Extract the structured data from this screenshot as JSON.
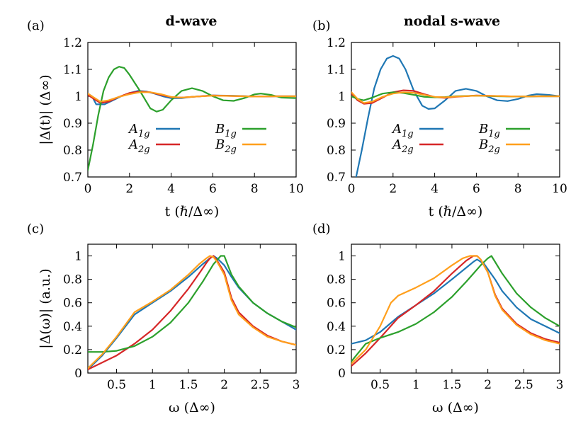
{
  "column_titles": {
    "left": "d-wave",
    "right": "nodal s-wave"
  },
  "chart_data": [
    {
      "type": "line",
      "panel_label": "(a)",
      "xlabel": "t (ℏ/Δ∞)",
      "ylabel": "|Δ(t)| (Δ∞)",
      "xlim": [
        0,
        10
      ],
      "ylim": [
        0.7,
        1.2
      ],
      "xticks": [
        "0",
        "2",
        "4",
        "6",
        "8",
        "10"
      ],
      "yticks": [
        "0.7",
        "0.8",
        "0.9",
        "1",
        "1.1",
        "1.2"
      ],
      "legend": "inside-lower-center",
      "series": [
        {
          "name": "A1g",
          "color": "#1f77b4",
          "x": [
            0,
            0.2,
            0.4,
            0.8,
            1.2,
            1.6,
            2.0,
            2.4,
            2.8,
            3.2,
            3.6,
            4.0,
            4.5,
            5,
            6,
            7,
            8,
            9,
            10
          ],
          "y": [
            1.01,
            1.0,
            0.97,
            0.97,
            0.985,
            1.0,
            1.012,
            1.02,
            1.018,
            1.01,
            1.0,
            0.993,
            0.993,
            0.998,
            1.003,
            1.002,
            0.999,
            1.0,
            1.0
          ]
        },
        {
          "name": "A2g",
          "color": "#d62728",
          "x": [
            0,
            0.3,
            0.6,
            1.0,
            1.5,
            2.0,
            2.5,
            3.0,
            3.5,
            4.0,
            4.5,
            5,
            6,
            7,
            8,
            9,
            10
          ],
          "y": [
            1.005,
            0.99,
            0.975,
            0.98,
            0.998,
            1.012,
            1.018,
            1.015,
            1.005,
            0.997,
            0.995,
            0.998,
            1.003,
            1.001,
            0.999,
            1.0,
            1.0
          ]
        },
        {
          "name": "B1g",
          "color": "#2ca02c",
          "x": [
            0,
            0.25,
            0.5,
            0.75,
            1.0,
            1.25,
            1.5,
            1.75,
            2.0,
            2.5,
            3.0,
            3.3,
            3.6,
            4.0,
            4.5,
            5.0,
            5.5,
            6.0,
            6.5,
            7.0,
            7.5,
            8.0,
            8.3,
            8.8,
            9.3,
            10
          ],
          "y": [
            0.725,
            0.82,
            0.93,
            1.02,
            1.07,
            1.1,
            1.11,
            1.105,
            1.08,
            1.02,
            0.955,
            0.943,
            0.95,
            0.985,
            1.02,
            1.03,
            1.02,
            1.0,
            0.985,
            0.983,
            0.993,
            1.007,
            1.01,
            1.005,
            0.995,
            0.993
          ]
        },
        {
          "name": "B2g",
          "color": "#ff9f1c",
          "x": [
            0,
            0.3,
            0.6,
            1.0,
            1.5,
            2.0,
            2.5,
            3.0,
            3.5,
            4.0,
            4.5,
            5,
            6,
            7,
            8,
            9,
            10
          ],
          "y": [
            1.01,
            0.995,
            0.98,
            0.985,
            0.998,
            1.008,
            1.015,
            1.015,
            1.008,
            0.998,
            0.995,
            0.998,
            1.002,
            1.001,
            0.999,
            1.0,
            1.0
          ]
        }
      ]
    },
    {
      "type": "line",
      "panel_label": "(b)",
      "xlabel": "t (ℏ/Δ∞)",
      "ylabel": "",
      "xlim": [
        0,
        10
      ],
      "ylim": [
        0.7,
        1.2
      ],
      "xticks": [
        "0",
        "2",
        "4",
        "6",
        "8",
        "10"
      ],
      "yticks": [
        "0.7",
        "0.8",
        "0.9",
        "1",
        "1.1",
        "1.2"
      ],
      "legend": "inside-lower-center",
      "series": [
        {
          "name": "A1g",
          "color": "#1f77b4",
          "x": [
            0.2,
            0.5,
            0.8,
            1.1,
            1.4,
            1.7,
            2.0,
            2.3,
            2.6,
            3.0,
            3.4,
            3.7,
            4.0,
            4.5,
            5.0,
            5.5,
            6.0,
            6.5,
            7.0,
            7.5,
            8.0,
            8.5,
            8.9,
            9.5,
            10
          ],
          "y": [
            0.69,
            0.8,
            0.92,
            1.03,
            1.1,
            1.14,
            1.15,
            1.14,
            1.1,
            1.02,
            0.965,
            0.953,
            0.955,
            0.985,
            1.02,
            1.028,
            1.02,
            1.0,
            0.985,
            0.982,
            0.99,
            1.003,
            1.008,
            1.005,
            1.0
          ]
        },
        {
          "name": "A2g",
          "color": "#d62728",
          "x": [
            0,
            0.3,
            0.6,
            1.0,
            1.5,
            2.0,
            2.5,
            3.0,
            3.5,
            4.0,
            4.5,
            5,
            6,
            7,
            8,
            9,
            10
          ],
          "y": [
            1.01,
            0.985,
            0.972,
            0.975,
            0.995,
            1.015,
            1.022,
            1.02,
            1.008,
            0.997,
            0.994,
            0.998,
            1.003,
            1.001,
            0.999,
            1.0,
            1.0
          ]
        },
        {
          "name": "B1g",
          "color": "#2ca02c",
          "x": [
            0,
            0.3,
            0.6,
            1.0,
            1.5,
            2.0,
            2.5,
            3.0,
            3.5,
            4.0,
            4.5,
            5,
            6,
            7,
            8,
            9,
            10
          ],
          "y": [
            1.0,
            0.99,
            0.985,
            0.995,
            1.01,
            1.015,
            1.012,
            1.005,
            0.998,
            0.996,
            0.997,
            1.0,
            1.002,
            1.0,
            0.999,
            1.0,
            1.0
          ]
        },
        {
          "name": "B2g",
          "color": "#ff9f1c",
          "x": [
            0,
            0.3,
            0.6,
            1.0,
            1.5,
            2.0,
            2.5,
            3.0,
            3.5,
            4.0,
            4.5,
            5,
            6,
            7,
            8,
            9,
            10
          ],
          "y": [
            1.015,
            0.99,
            0.975,
            0.98,
            0.998,
            1.01,
            1.015,
            1.013,
            1.005,
            0.998,
            0.996,
            0.999,
            1.002,
            1.001,
            0.999,
            1.0,
            1.0
          ]
        }
      ]
    },
    {
      "type": "line",
      "panel_label": "(c)",
      "xlabel": "ω (Δ∞)",
      "ylabel": "|Δ(ω)| (a.u.)",
      "xlim": [
        0.1,
        3
      ],
      "ylim": [
        0,
        1.1
      ],
      "xticks": [
        "0.5",
        "1",
        "1.5",
        "2",
        "2.5",
        "3"
      ],
      "yticks": [
        "0",
        "0.2",
        "0.4",
        "0.6",
        "0.8",
        "1"
      ],
      "legend": "none",
      "series": [
        {
          "name": "A1g",
          "color": "#1f77b4",
          "x": [
            0.1,
            0.3,
            0.5,
            0.75,
            1.0,
            1.25,
            1.5,
            1.7,
            1.8,
            1.85,
            1.9,
            2.0,
            2.1,
            2.2,
            2.4,
            2.6,
            2.8,
            3.0
          ],
          "y": [
            0.03,
            0.15,
            0.3,
            0.5,
            0.6,
            0.7,
            0.82,
            0.93,
            0.98,
            1.0,
            0.98,
            0.92,
            0.82,
            0.73,
            0.6,
            0.51,
            0.44,
            0.37
          ]
        },
        {
          "name": "A2g",
          "color": "#d62728",
          "x": [
            0.1,
            0.3,
            0.5,
            0.75,
            1.0,
            1.25,
            1.5,
            1.65,
            1.75,
            1.8,
            1.85,
            1.9,
            2.0,
            2.1,
            2.2,
            2.4,
            2.6,
            2.8,
            3.0
          ],
          "y": [
            0.03,
            0.09,
            0.15,
            0.25,
            0.37,
            0.53,
            0.72,
            0.85,
            0.94,
            0.98,
            1.0,
            0.96,
            0.86,
            0.64,
            0.52,
            0.4,
            0.32,
            0.27,
            0.24
          ]
        },
        {
          "name": "B1g",
          "color": "#2ca02c",
          "x": [
            0.1,
            0.3,
            0.5,
            0.75,
            1.0,
            1.25,
            1.5,
            1.7,
            1.85,
            1.95,
            2.0,
            2.1,
            2.2,
            2.4,
            2.6,
            2.8,
            3.0
          ],
          "y": [
            0.18,
            0.18,
            0.19,
            0.23,
            0.31,
            0.43,
            0.6,
            0.78,
            0.93,
            1.0,
            1.0,
            0.84,
            0.74,
            0.6,
            0.51,
            0.44,
            0.39
          ]
        },
        {
          "name": "B2g",
          "color": "#ff9f1c",
          "x": [
            0.1,
            0.3,
            0.5,
            0.75,
            1.0,
            1.25,
            1.5,
            1.65,
            1.75,
            1.8,
            1.85,
            1.9,
            2.0,
            2.1,
            2.2,
            2.4,
            2.6,
            2.8,
            3.0
          ],
          "y": [
            0.04,
            0.16,
            0.31,
            0.52,
            0.61,
            0.71,
            0.84,
            0.93,
            0.98,
            1.0,
            0.99,
            0.95,
            0.84,
            0.62,
            0.5,
            0.39,
            0.31,
            0.27,
            0.24
          ]
        }
      ]
    },
    {
      "type": "line",
      "panel_label": "(d)",
      "xlabel": "ω (Δ∞)",
      "ylabel": "",
      "xlim": [
        0.1,
        3
      ],
      "ylim": [
        0,
        1.1
      ],
      "xticks": [
        "0.5",
        "1",
        "1.5",
        "2",
        "2.5",
        "3"
      ],
      "yticks": [
        "0",
        "0.2",
        "0.4",
        "0.6",
        "0.8",
        "1"
      ],
      "legend": "none",
      "series": [
        {
          "name": "A1g",
          "color": "#1f77b4",
          "x": [
            0.1,
            0.3,
            0.5,
            0.75,
            1.0,
            1.25,
            1.5,
            1.7,
            1.8,
            1.85,
            1.95,
            2.1,
            2.2,
            2.4,
            2.6,
            2.8,
            3.0
          ],
          "y": [
            0.25,
            0.28,
            0.35,
            0.48,
            0.58,
            0.68,
            0.8,
            0.9,
            0.95,
            0.97,
            0.93,
            0.8,
            0.7,
            0.56,
            0.46,
            0.4,
            0.34
          ]
        },
        {
          "name": "A2g",
          "color": "#d62728",
          "x": [
            0.1,
            0.3,
            0.5,
            0.75,
            1.0,
            1.25,
            1.5,
            1.7,
            1.8,
            1.85,
            1.9,
            2.0,
            2.1,
            2.2,
            2.4,
            2.6,
            2.8,
            3.0
          ],
          "y": [
            0.06,
            0.17,
            0.3,
            0.47,
            0.58,
            0.7,
            0.85,
            0.96,
            1.0,
            1.0,
            0.97,
            0.86,
            0.67,
            0.55,
            0.42,
            0.34,
            0.29,
            0.26
          ]
        },
        {
          "name": "B1g",
          "color": "#2ca02c",
          "x": [
            0.1,
            0.3,
            0.5,
            0.75,
            1.0,
            1.25,
            1.5,
            1.7,
            1.9,
            2.0,
            2.05,
            2.2,
            2.4,
            2.6,
            2.8,
            3.0
          ],
          "y": [
            0.1,
            0.25,
            0.3,
            0.35,
            0.42,
            0.52,
            0.65,
            0.78,
            0.92,
            0.98,
            1.0,
            0.85,
            0.68,
            0.56,
            0.47,
            0.4
          ]
        },
        {
          "name": "B2g",
          "color": "#ff9f1c",
          "x": [
            0.1,
            0.3,
            0.5,
            0.65,
            0.75,
            1.0,
            1.25,
            1.5,
            1.65,
            1.75,
            1.85,
            1.9,
            2.0,
            2.1,
            2.2,
            2.4,
            2.6,
            2.8,
            3.0
          ],
          "y": [
            0.08,
            0.2,
            0.4,
            0.6,
            0.66,
            0.73,
            0.81,
            0.92,
            0.98,
            1.0,
            1.0,
            0.97,
            0.86,
            0.66,
            0.54,
            0.41,
            0.33,
            0.28,
            0.25
          ]
        }
      ]
    }
  ]
}
